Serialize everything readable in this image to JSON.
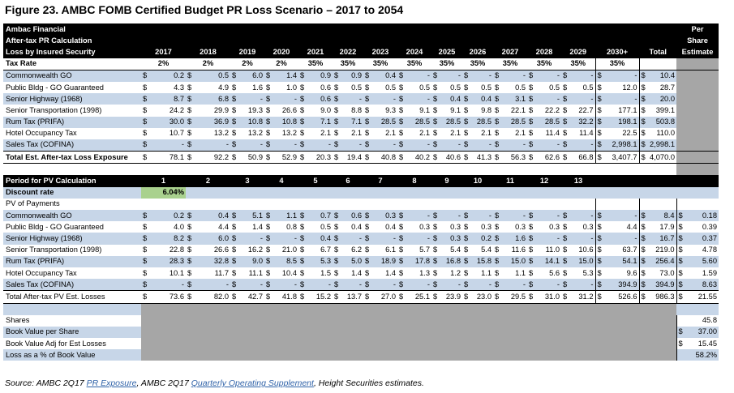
{
  "title": "Figure 23.  AMBC FOMB Certified Budget PR Loss Scenario – 2017 to 2054",
  "header": {
    "line1": "Ambac Financial",
    "line2": "After-tax PR Calculation",
    "line3": "Loss by Insured Security",
    "per1": "Per",
    "per2": "Share",
    "per3": "Estimate",
    "years": [
      "2017",
      "2018",
      "2019",
      "2020",
      "2021",
      "2022",
      "2023",
      "2024",
      "2025",
      "2026",
      "2027",
      "2028",
      "2029",
      "2030+"
    ],
    "total": "Total"
  },
  "tax_rate": {
    "label": "Tax Rate",
    "values": [
      "2%",
      "2%",
      "2%",
      "2%",
      "35%",
      "35%",
      "35%",
      "35%",
      "35%",
      "35%",
      "35%",
      "35%",
      "35%",
      "35%"
    ]
  },
  "loss_rows": [
    {
      "label": "Commonwealth GO",
      "values": [
        "0.2",
        "0.5",
        "6.0",
        "1.4",
        "0.9",
        "0.9",
        "0.4",
        "-",
        "-",
        "-",
        "-",
        "-",
        "-",
        "-"
      ],
      "total": "10.4"
    },
    {
      "label": "Public Bldg - GO Guaranteed",
      "values": [
        "4.3",
        "4.9",
        "1.6",
        "1.0",
        "0.6",
        "0.5",
        "0.5",
        "0.5",
        "0.5",
        "0.5",
        "0.5",
        "0.5",
        "0.5",
        "12.0"
      ],
      "total": "28.7"
    },
    {
      "label": "Senior Highway (1968)",
      "values": [
        "8.7",
        "6.8",
        "-",
        "-",
        "0.6",
        "-",
        "-",
        "-",
        "0.4",
        "0.4",
        "3.1",
        "-",
        "-",
        "-"
      ],
      "total": "20.0"
    },
    {
      "label": "Senior Transportation (1998)",
      "values": [
        "24.2",
        "29.9",
        "19.3",
        "26.6",
        "9.0",
        "8.8",
        "9.3",
        "9.1",
        "9.1",
        "9.8",
        "22.1",
        "22.2",
        "22.7",
        "177.1"
      ],
      "total": "399.1"
    },
    {
      "label": "Rum Tax (PRIFA)",
      "values": [
        "30.0",
        "36.9",
        "10.8",
        "10.8",
        "7.1",
        "7.1",
        "28.5",
        "28.5",
        "28.5",
        "28.5",
        "28.5",
        "28.5",
        "32.2",
        "198.1"
      ],
      "total": "503.8"
    },
    {
      "label": "Hotel Occupancy Tax",
      "values": [
        "10.7",
        "13.2",
        "13.2",
        "13.2",
        "2.1",
        "2.1",
        "2.1",
        "2.1",
        "2.1",
        "2.1",
        "2.1",
        "11.4",
        "11.4",
        "22.5"
      ],
      "total": "110.0"
    },
    {
      "label": "Sales Tax (COFINA)",
      "values": [
        "-",
        "-",
        "-",
        "-",
        "-",
        "-",
        "-",
        "-",
        "-",
        "-",
        "-",
        "-",
        "-",
        "2,998.1"
      ],
      "total": "2,998.1"
    }
  ],
  "loss_total": {
    "label": "Total Est. After-tax Loss Exposure",
    "values": [
      "78.1",
      "92.2",
      "50.9",
      "52.9",
      "20.3",
      "19.4",
      "40.8",
      "40.2",
      "40.6",
      "41.3",
      "56.3",
      "62.6",
      "66.8",
      "3,407.7"
    ],
    "total": "4,070.0"
  },
  "pv_header": {
    "label": "Period for PV Calculation",
    "periods": [
      "1",
      "2",
      "3",
      "4",
      "5",
      "6",
      "7",
      "8",
      "9",
      "10",
      "11",
      "12",
      "13"
    ]
  },
  "discount": {
    "label": "Discount rate",
    "value": "6.04%"
  },
  "pv_title": "PV of Payments",
  "pv_rows": [
    {
      "label": "Commonwealth GO",
      "values": [
        "0.2",
        "0.4",
        "5.1",
        "1.1",
        "0.7",
        "0.6",
        "0.3",
        "-",
        "-",
        "-",
        "-",
        "-",
        "-",
        "-"
      ],
      "total": "8.4",
      "per_share": "0.18"
    },
    {
      "label": "Public Bldg - GO Guaranteed",
      "values": [
        "4.0",
        "4.4",
        "1.4",
        "0.8",
        "0.5",
        "0.4",
        "0.4",
        "0.3",
        "0.3",
        "0.3",
        "0.3",
        "0.3",
        "0.3",
        "4.4"
      ],
      "total": "17.9",
      "per_share": "0.39"
    },
    {
      "label": "Senior Highway (1968)",
      "values": [
        "8.2",
        "6.0",
        "-",
        "-",
        "0.4",
        "-",
        "-",
        "-",
        "0.3",
        "0.2",
        "1.6",
        "-",
        "-",
        "-"
      ],
      "total": "16.7",
      "per_share": "0.37"
    },
    {
      "label": "Senior Transportation (1998)",
      "values": [
        "22.8",
        "26.6",
        "16.2",
        "21.0",
        "6.7",
        "6.2",
        "6.1",
        "5.7",
        "5.4",
        "5.4",
        "11.6",
        "11.0",
        "10.6",
        "63.7"
      ],
      "total": "219.0",
      "per_share": "4.78"
    },
    {
      "label": "Rum Tax (PRIFA)",
      "values": [
        "28.3",
        "32.8",
        "9.0",
        "8.5",
        "5.3",
        "5.0",
        "18.9",
        "17.8",
        "16.8",
        "15.8",
        "15.0",
        "14.1",
        "15.0",
        "54.1"
      ],
      "total": "256.4",
      "per_share": "5.60"
    },
    {
      "label": "Hotel Occupancy Tax",
      "values": [
        "10.1",
        "11.7",
        "11.1",
        "10.4",
        "1.5",
        "1.4",
        "1.4",
        "1.3",
        "1.2",
        "1.1",
        "1.1",
        "5.6",
        "5.3",
        "9.6"
      ],
      "total": "73.0",
      "per_share": "1.59"
    },
    {
      "label": "Sales Tax (COFINA)",
      "values": [
        "-",
        "-",
        "-",
        "-",
        "-",
        "-",
        "-",
        "-",
        "-",
        "-",
        "-",
        "-",
        "-",
        "394.9"
      ],
      "total": "394.9",
      "per_share": "8.63"
    }
  ],
  "pv_total": {
    "label": "Total After-tax PV Est. Losses",
    "values": [
      "73.6",
      "82.0",
      "42.7",
      "41.8",
      "15.2",
      "13.7",
      "27.0",
      "25.1",
      "23.9",
      "23.0",
      "29.5",
      "31.0",
      "31.2",
      "526.6"
    ],
    "total": "986.3",
    "per_share": "21.55"
  },
  "summary": [
    {
      "label": "Shares",
      "dollar": "",
      "value": "45.8"
    },
    {
      "label": "Book Value per Share",
      "dollar": "$",
      "value": "37.00"
    },
    {
      "label": "Book Value Adj for Est Losses",
      "dollar": "$",
      "value": "15.45"
    },
    {
      "label": "Loss as a % of Book Value",
      "dollar": "",
      "value": "58.2%"
    }
  ],
  "source": {
    "prefix": "Source: AMBC 2Q17 ",
    "link1": "PR Exposure",
    "mid": ", AMBC 2Q17 ",
    "link2": "Quarterly Operating Supplement",
    "suffix": ", Height Securities estimates."
  },
  "dollar_sign": "$"
}
